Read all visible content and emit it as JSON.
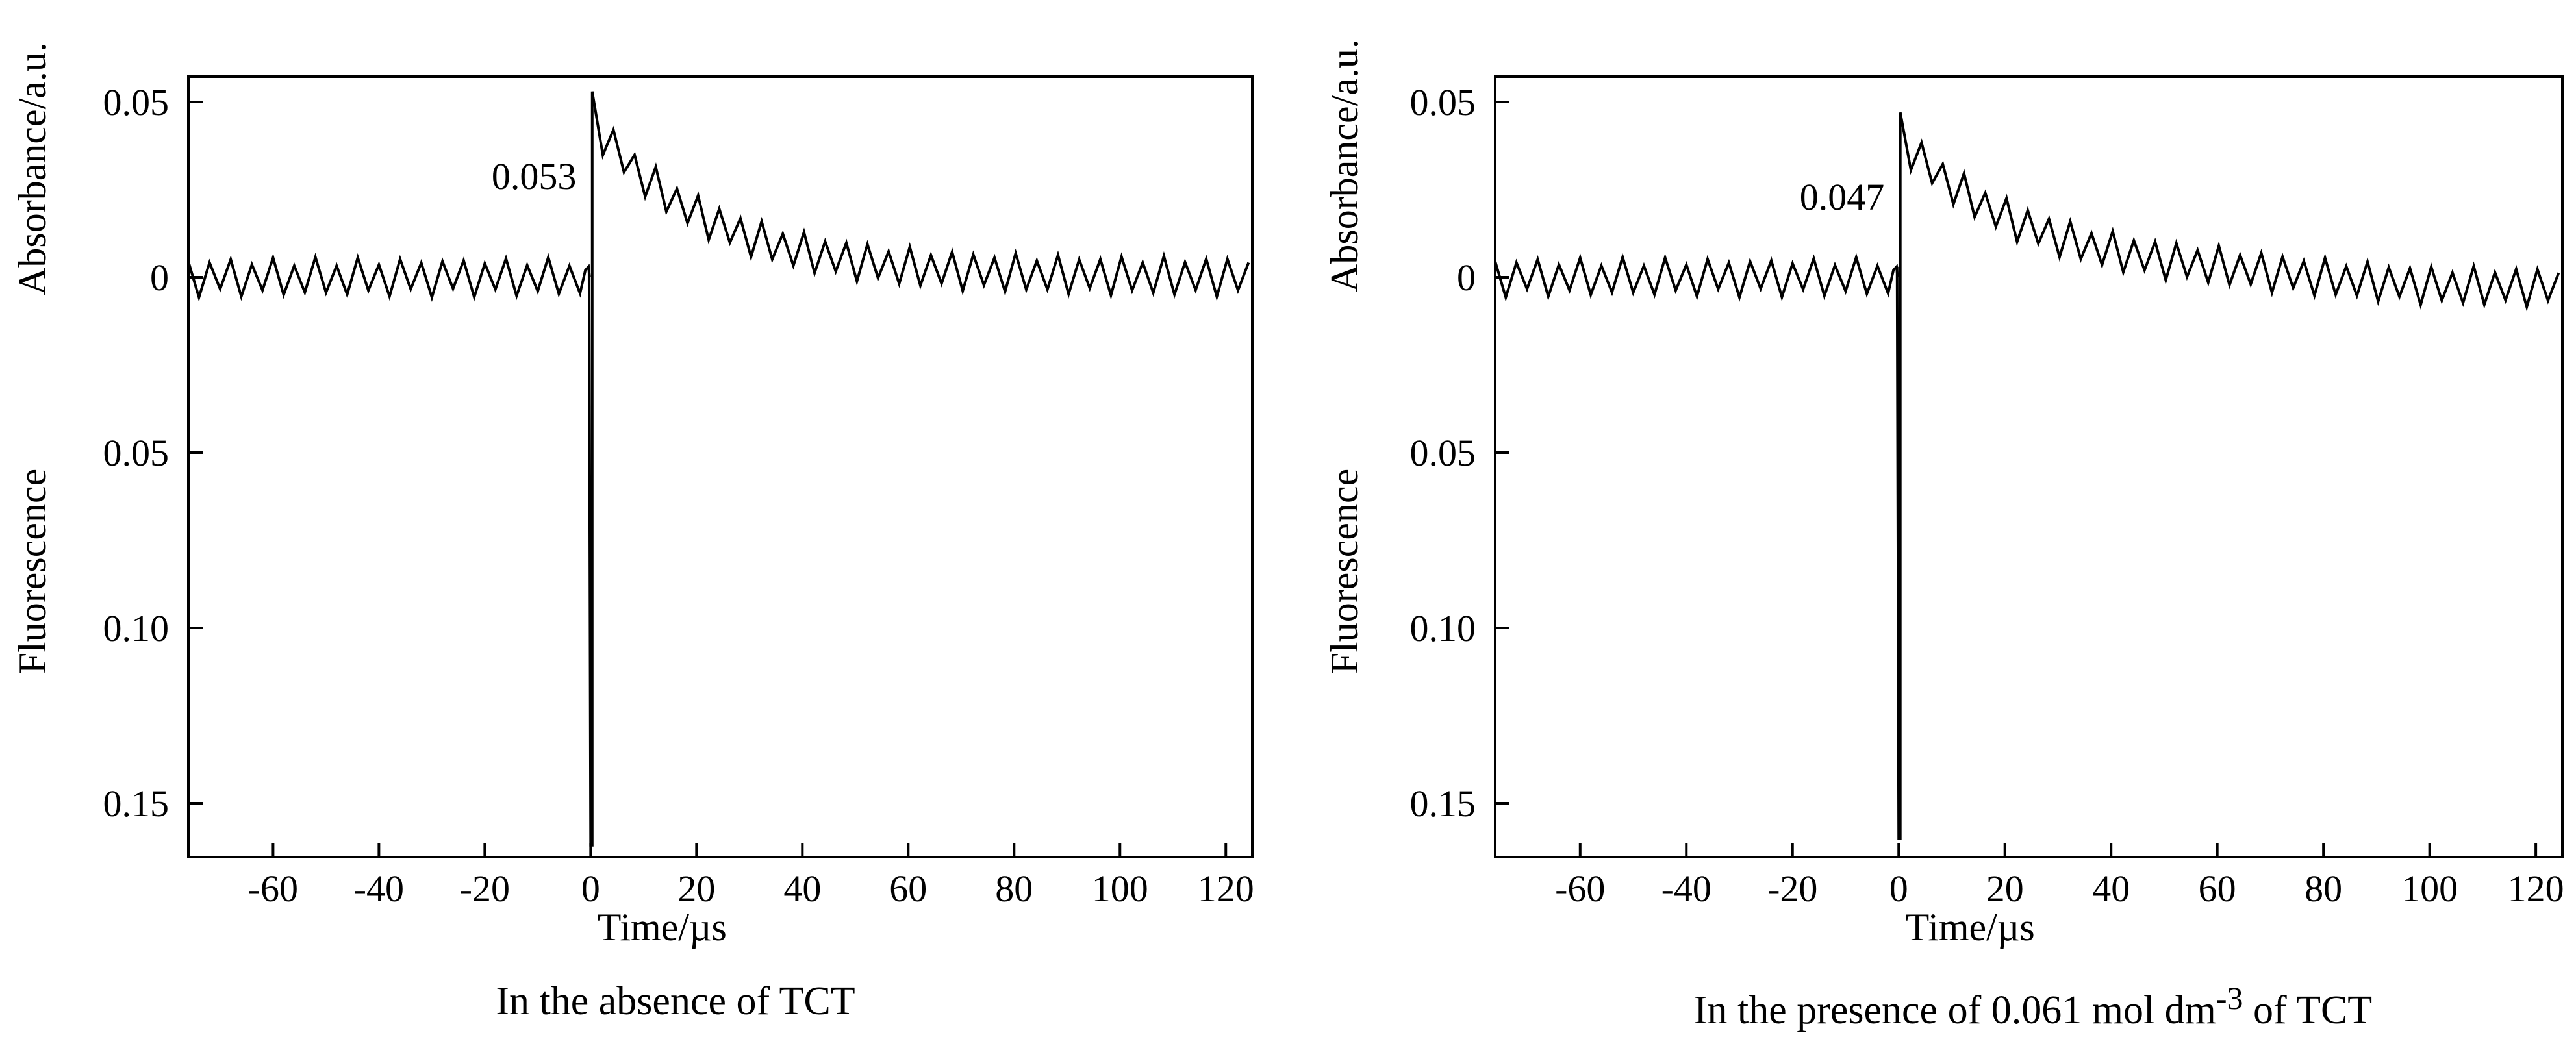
{
  "chart_data": [
    {
      "type": "line",
      "caption": "In the absence of TCT",
      "caption_sup": "",
      "caption_after": "",
      "xlabel": "Time/µs",
      "ylabel_top": "Absorbance/a.u.",
      "ylabel_bottom": "Fluorescence",
      "xlim": [
        -76,
        125
      ],
      "x_ticks": [
        -60,
        -40,
        -20,
        0,
        20,
        40,
        60,
        80,
        100,
        120
      ],
      "absorbance_ticks": [
        "0.05",
        "0"
      ],
      "fluorescence_ticks": [
        "0.05",
        "0.10",
        "0.15"
      ],
      "annotation": "0.053",
      "absorbance_peak": 0.053,
      "fluorescence_peak": 0.162,
      "decay_tau_us": 22,
      "baseline_noise": 0.005,
      "color": "#000000",
      "series": [
        {
          "name": "",
          "kind": "absorbance",
          "x": [
            -76,
            -60,
            -40,
            -20,
            -5,
            -2,
            0,
            0.3,
            5,
            10,
            20,
            30,
            40,
            60,
            80,
            100,
            125
          ],
          "y": [
            0.0,
            0.0,
            0.0,
            0.0,
            0.0,
            0.0,
            0.0,
            0.053,
            0.042,
            0.033,
            0.021,
            0.013,
            0.008,
            0.003,
            0.001,
            0.0,
            0.0
          ]
        },
        {
          "name": "",
          "kind": "fluorescence",
          "x": [
            -76,
            -2,
            -0.5,
            0,
            0.3,
            0.6,
            1,
            125
          ],
          "y": [
            0.0,
            0.0,
            0.0,
            0.162,
            0.162,
            0.0,
            0.0,
            0.0
          ]
        }
      ]
    },
    {
      "type": "line",
      "caption": "In the presence of 0.061 mol dm",
      "caption_sup": "-3",
      "caption_after": " of TCT",
      "xlabel": "Time/µs",
      "ylabel_top": "Absorbance/a.u.",
      "ylabel_bottom": "Fluorescence",
      "xlim": [
        -76,
        125
      ],
      "x_ticks": [
        -60,
        -40,
        -20,
        0,
        20,
        40,
        60,
        80,
        100,
        120
      ],
      "absorbance_ticks": [
        "0.05",
        "0"
      ],
      "fluorescence_ticks": [
        "0.05",
        "0.10",
        "0.15"
      ],
      "annotation": "0.047",
      "absorbance_peak": 0.047,
      "fluorescence_peak": 0.16,
      "decay_tau_us": 24,
      "baseline_noise": 0.005,
      "color": "#000000",
      "series": [
        {
          "name": "",
          "kind": "absorbance",
          "x": [
            -76,
            -60,
            -40,
            -20,
            -5,
            -2,
            0,
            0.3,
            5,
            10,
            20,
            30,
            40,
            60,
            80,
            100,
            125
          ],
          "y": [
            0.0,
            0.0,
            0.0,
            0.0,
            0.0,
            0.0,
            0.0,
            0.047,
            0.038,
            0.03,
            0.02,
            0.013,
            0.008,
            0.002,
            -0.002,
            -0.003,
            -0.004
          ]
        },
        {
          "name": "",
          "kind": "fluorescence",
          "x": [
            -76,
            -2,
            -0.5,
            0,
            0.3,
            0.6,
            1,
            125
          ],
          "y": [
            0.0,
            0.0,
            0.0,
            0.16,
            0.16,
            0.0,
            0.0,
            0.0
          ]
        }
      ]
    }
  ]
}
